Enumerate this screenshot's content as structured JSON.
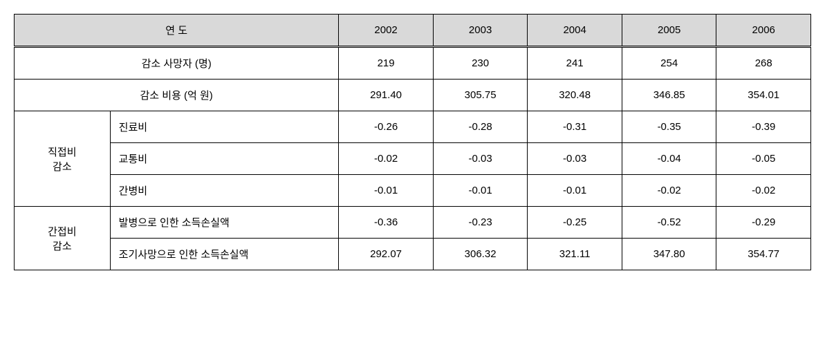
{
  "type": "table",
  "background_color": "#ffffff",
  "header_bg_color": "#d9d9d9",
  "border_color": "#000000",
  "font_size": 15,
  "columns": {
    "year_label": "연  도",
    "years": [
      "2002",
      "2003",
      "2004",
      "2005",
      "2006"
    ]
  },
  "rows": {
    "deaths": {
      "label": "감소 사망자 (명)",
      "values": [
        "219",
        "230",
        "241",
        "254",
        "268"
      ]
    },
    "cost": {
      "label": "감소 비용 (억 원)",
      "values": [
        "291.40",
        "305.75",
        "320.48",
        "346.85",
        "354.01"
      ]
    },
    "direct": {
      "group_label": "직접비\n감소",
      "items": [
        {
          "label": "진료비",
          "values": [
            "-0.26",
            "-0.28",
            "-0.31",
            "-0.35",
            "-0.39"
          ]
        },
        {
          "label": "교통비",
          "values": [
            "-0.02",
            "-0.03",
            "-0.03",
            "-0.04",
            "-0.05"
          ]
        },
        {
          "label": "간병비",
          "values": [
            "-0.01",
            "-0.01",
            "-0.01",
            "-0.02",
            "-0.02"
          ]
        }
      ]
    },
    "indirect": {
      "group_label": "간접비\n감소",
      "items": [
        {
          "label": "발병으로 인한 소득손실액",
          "values": [
            "-0.36",
            "-0.23",
            "-0.25",
            "-0.52",
            "-0.29"
          ]
        },
        {
          "label": "조기사망으로 인한 소득손실액",
          "values": [
            "292.07",
            "306.32",
            "321.11",
            "347.80",
            "354.77"
          ]
        }
      ]
    }
  }
}
